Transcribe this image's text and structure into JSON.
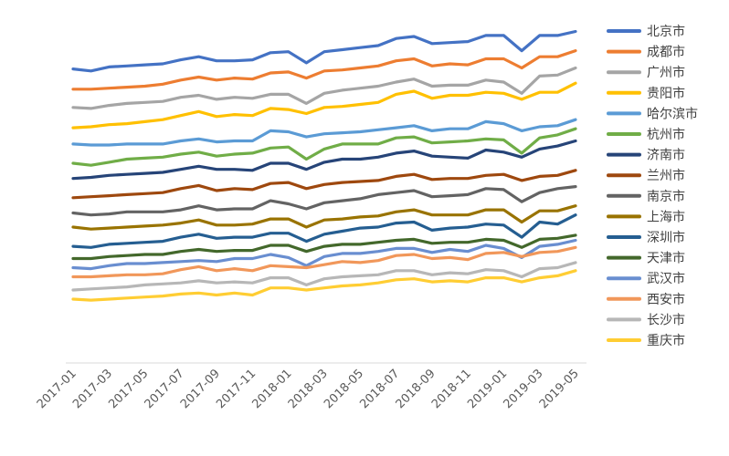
{
  "chart_data": {
    "type": "line",
    "title": "",
    "xlabel": "",
    "ylabel": "",
    "ylim": [
      0,
      340
    ],
    "grid": false,
    "legend_position": "right",
    "x": [
      "2017-01",
      "2017-02",
      "2017-03",
      "2017-04",
      "2017-05",
      "2017-06",
      "2017-07",
      "2017-08",
      "2017-09",
      "2017-10",
      "2017-11",
      "2017-12",
      "2018-01",
      "2018-02",
      "2018-03",
      "2018-04",
      "2018-05",
      "2018-06",
      "2018-07",
      "2018-08",
      "2018-09",
      "2018-10",
      "2018-11",
      "2018-12",
      "2019-01",
      "2019-02",
      "2019-03",
      "2019-04",
      "2019-05"
    ],
    "tick_labels": [
      "2017-01",
      "2017-03",
      "2017-05",
      "2017-07",
      "2017-09",
      "2017-11",
      "2018-01",
      "2018-03",
      "2018-05",
      "2018-07",
      "2018-09",
      "2018-11",
      "2019-01",
      "2019-03",
      "2019-05"
    ],
    "series": [
      {
        "name": "北京市",
        "color": "#4472C4",
        "values": [
          290,
          288,
          292,
          293,
          294,
          295,
          299,
          302,
          298,
          298,
          299,
          306,
          307,
          296,
          307,
          309,
          311,
          313,
          320,
          322,
          315,
          316,
          317,
          323,
          323,
          308,
          323,
          323,
          327
        ]
      },
      {
        "name": "成都市",
        "color": "#ED7D31",
        "values": [
          270,
          270,
          271,
          272,
          273,
          275,
          279,
          282,
          279,
          281,
          280,
          286,
          287,
          281,
          288,
          289,
          291,
          293,
          298,
          300,
          293,
          295,
          294,
          300,
          300,
          291,
          302,
          302,
          308
        ]
      },
      {
        "name": "广州市",
        "color": "#A5A5A5",
        "values": [
          252,
          251,
          254,
          256,
          257,
          258,
          262,
          264,
          260,
          262,
          261,
          265,
          265,
          256,
          266,
          269,
          271,
          273,
          277,
          280,
          273,
          274,
          274,
          279,
          277,
          266,
          283,
          284,
          291
        ]
      },
      {
        "name": "贵阳市",
        "color": "#FFC000",
        "values": [
          232,
          233,
          235,
          236,
          238,
          240,
          244,
          248,
          243,
          245,
          244,
          251,
          250,
          246,
          252,
          253,
          255,
          257,
          265,
          268,
          261,
          264,
          264,
          267,
          266,
          260,
          267,
          267,
          276
        ]
      },
      {
        "name": "哈尔滨市",
        "color": "#5B9BD5",
        "values": [
          216,
          215,
          215,
          216,
          216,
          216,
          219,
          221,
          218,
          219,
          219,
          229,
          228,
          223,
          226,
          227,
          228,
          230,
          232,
          234,
          229,
          231,
          231,
          238,
          236,
          229,
          233,
          234,
          240
        ]
      },
      {
        "name": "杭州市",
        "color": "#70AD47",
        "values": [
          197,
          195,
          198,
          201,
          202,
          203,
          206,
          208,
          204,
          206,
          207,
          212,
          213,
          201,
          211,
          216,
          216,
          216,
          222,
          223,
          217,
          218,
          219,
          221,
          220,
          207,
          222,
          225,
          231
        ]
      },
      {
        "name": "济南市",
        "color": "#264478",
        "values": [
          182,
          183,
          185,
          186,
          187,
          188,
          191,
          194,
          191,
          191,
          190,
          197,
          197,
          191,
          198,
          201,
          201,
          203,
          207,
          209,
          204,
          203,
          202,
          210,
          208,
          203,
          211,
          214,
          219
        ]
      },
      {
        "name": "兰州市",
        "color": "#9E480E",
        "values": [
          163,
          164,
          165,
          166,
          167,
          168,
          172,
          175,
          170,
          172,
          171,
          177,
          178,
          172,
          176,
          178,
          179,
          180,
          184,
          186,
          181,
          182,
          182,
          185,
          186,
          180,
          184,
          185,
          190
        ]
      },
      {
        "name": "南京市",
        "color": "#636363",
        "values": [
          148,
          146,
          147,
          149,
          149,
          149,
          151,
          155,
          151,
          152,
          152,
          160,
          157,
          152,
          158,
          160,
          162,
          166,
          168,
          170,
          164,
          165,
          166,
          172,
          171,
          159,
          168,
          172,
          174
        ]
      },
      {
        "name": "上海市",
        "color": "#997300",
        "values": [
          134,
          132,
          133,
          134,
          135,
          136,
          138,
          141,
          136,
          136,
          137,
          142,
          142,
          134,
          141,
          142,
          144,
          145,
          149,
          151,
          146,
          146,
          146,
          151,
          151,
          139,
          150,
          150,
          155
        ]
      },
      {
        "name": "深圳市",
        "color": "#255E91",
        "values": [
          115,
          114,
          117,
          118,
          119,
          120,
          124,
          127,
          123,
          124,
          124,
          128,
          128,
          120,
          127,
          130,
          133,
          134,
          138,
          139,
          131,
          133,
          134,
          137,
          136,
          124,
          139,
          137,
          146
        ]
      },
      {
        "name": "天津市",
        "color": "#43682B",
        "values": [
          103,
          103,
          105,
          106,
          107,
          107,
          110,
          112,
          110,
          111,
          111,
          116,
          116,
          110,
          115,
          117,
          117,
          119,
          121,
          122,
          118,
          119,
          119,
          122,
          121,
          114,
          122,
          123,
          126
        ]
      },
      {
        "name": "武汉市",
        "color": "#698ED0",
        "values": [
          94,
          93,
          96,
          98,
          98,
          99,
          100,
          101,
          100,
          103,
          103,
          107,
          104,
          96,
          105,
          108,
          108,
          110,
          113,
          113,
          109,
          112,
          110,
          116,
          113,
          104,
          115,
          117,
          121
        ]
      },
      {
        "name": "西安市",
        "color": "#F1975A",
        "values": [
          85,
          85,
          86,
          87,
          87,
          88,
          92,
          95,
          91,
          93,
          91,
          96,
          95,
          94,
          97,
          100,
          99,
          101,
          106,
          107,
          103,
          104,
          102,
          108,
          109,
          105,
          109,
          110,
          114
        ]
      },
      {
        "name": "长沙市",
        "color": "#B7B7B7",
        "values": [
          72,
          73,
          74,
          75,
          77,
          78,
          79,
          81,
          79,
          80,
          79,
          84,
          84,
          77,
          83,
          85,
          86,
          87,
          91,
          91,
          87,
          89,
          88,
          92,
          91,
          85,
          93,
          94,
          99
        ]
      },
      {
        "name": "重庆市",
        "color": "#FFCD33",
        "values": [
          63,
          62,
          63,
          64,
          65,
          66,
          68,
          69,
          67,
          69,
          67,
          74,
          74,
          72,
          74,
          76,
          77,
          79,
          82,
          83,
          80,
          81,
          80,
          84,
          84,
          80,
          84,
          86,
          91
        ]
      }
    ]
  }
}
